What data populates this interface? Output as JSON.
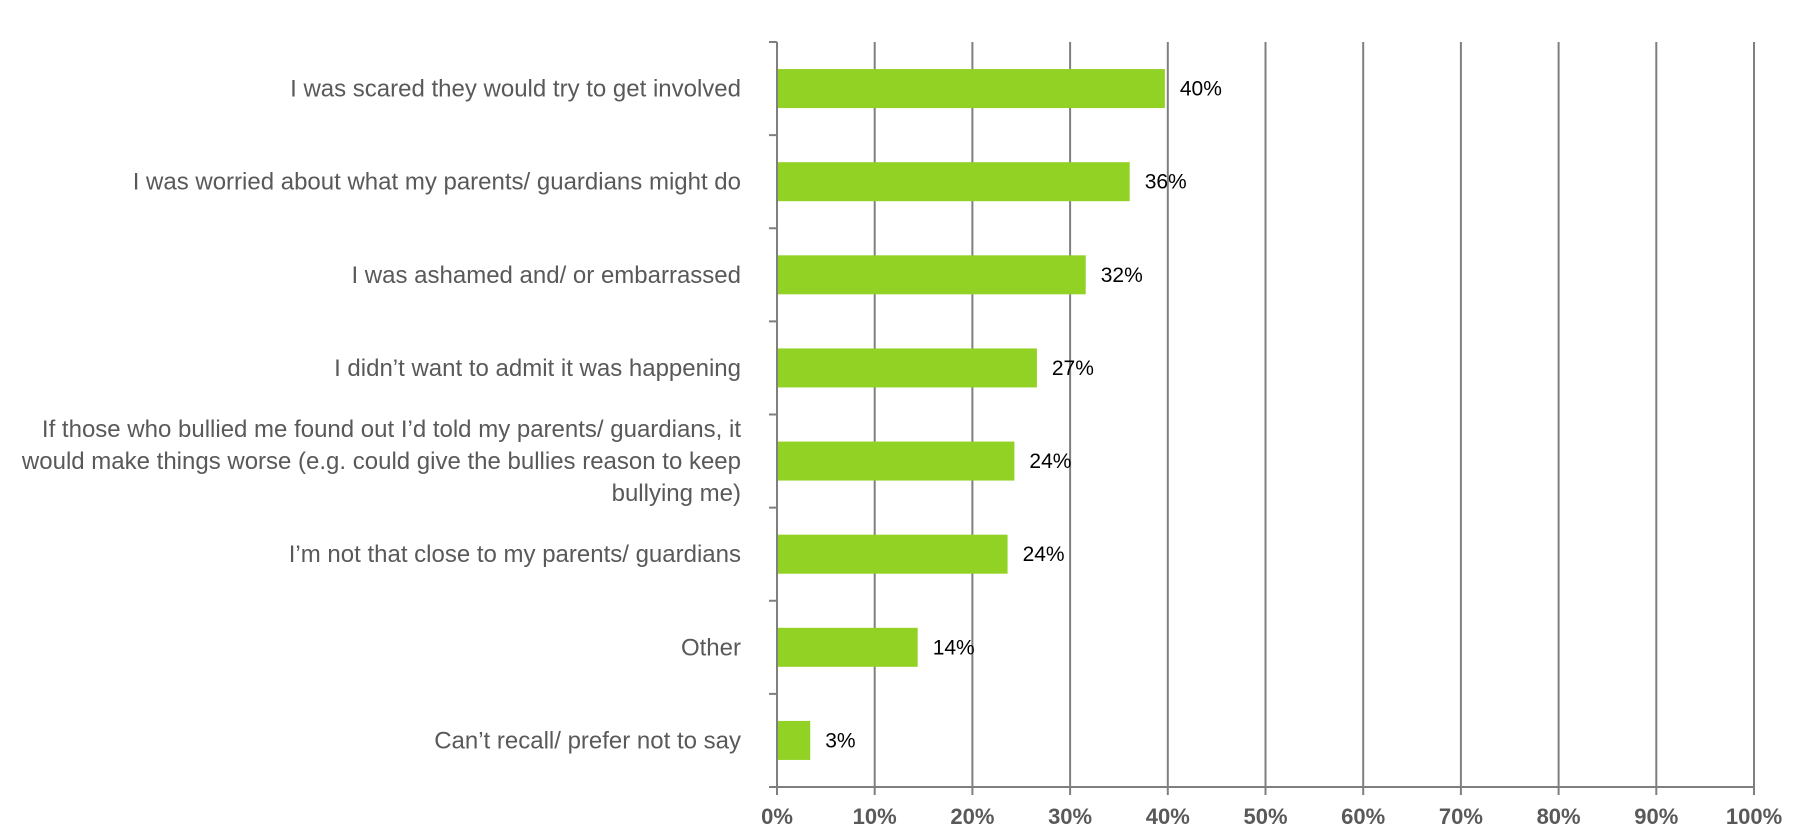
{
  "chart_data": {
    "type": "bar",
    "orientation": "horizontal",
    "categories": [
      "I was scared they would try to get involved",
      "I was worried about what my parents/ guardians might do",
      "I was ashamed and/ or embarrassed",
      "I didn’t want to admit it was happening",
      "If those who bullied me found out I’d told my parents/ guardians, it would make things worse (e.g. could give the bullies reason to keep bullying me)",
      "I’m not that close to my parents/ guardians",
      "Other",
      "Can’t recall/ prefer not to say"
    ],
    "category_lines": [
      [
        "I was scared they would try to get involved"
      ],
      [
        "I was worried about what my parents/ guardians might do"
      ],
      [
        "I was ashamed and/ or embarrassed"
      ],
      [
        "I didn’t want to admit it was happening"
      ],
      [
        "If those who bullied me found out I’d told my parents/ guardians, it",
        "would make things worse (e.g. could give the bullies reason to keep",
        "bullying me)"
      ],
      [
        "I’m not that close to my parents/ guardians"
      ],
      [
        "Other"
      ],
      [
        "Can’t recall/ prefer not to say"
      ]
    ],
    "values": [
      39.7,
      36.1,
      31.6,
      26.6,
      24.3,
      23.6,
      14.4,
      3.4
    ],
    "data_labels": [
      "40%",
      "36%",
      "32%",
      "27%",
      "24%",
      "24%",
      "14%",
      "3%"
    ],
    "xlim": [
      0,
      100
    ],
    "x_ticks": [
      0,
      10,
      20,
      30,
      40,
      50,
      60,
      70,
      80,
      90,
      100
    ],
    "x_tick_labels": [
      "0%",
      "10%",
      "20%",
      "30%",
      "40%",
      "50%",
      "60%",
      "70%",
      "80%",
      "90%",
      "100%"
    ],
    "bar_color": "#92D224",
    "grid": true,
    "grid_color": "#7f7f7f",
    "legend": "none"
  }
}
